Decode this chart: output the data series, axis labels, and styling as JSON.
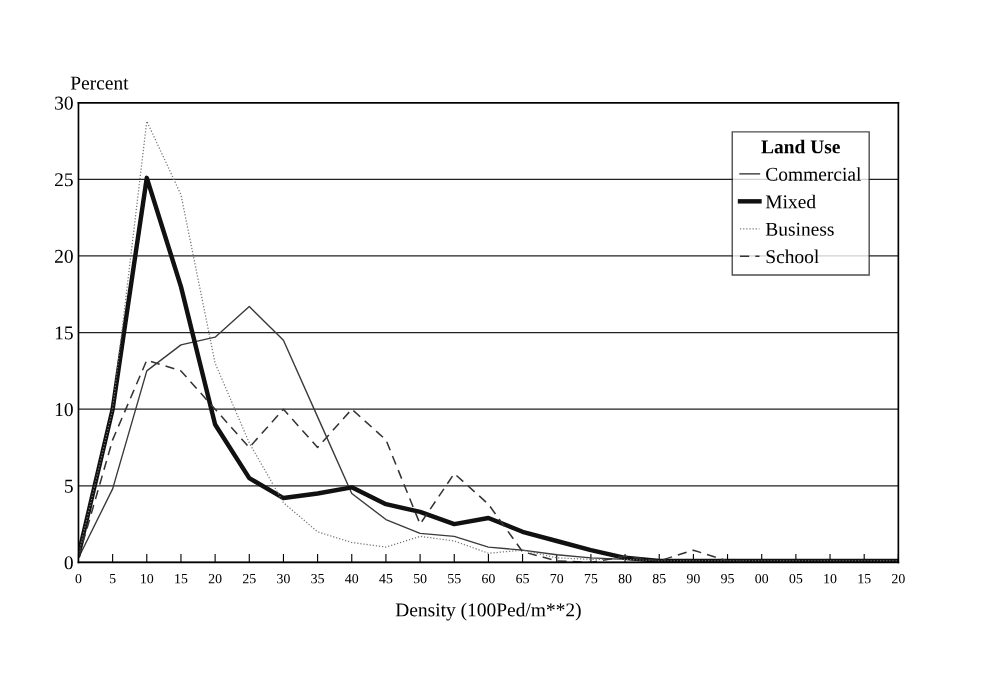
{
  "chart_data": {
    "type": "line",
    "ylabel": "Percent",
    "xlabel": "Density (100Ped/m**2)",
    "legend_title": "Land Use",
    "categories": [
      "0",
      "5",
      "10",
      "15",
      "20",
      "25",
      "30",
      "35",
      "40",
      "45",
      "50",
      "55",
      "60",
      "65",
      "70",
      "75",
      "80",
      "85",
      "90",
      "95",
      "00",
      "05",
      "10",
      "15",
      "20"
    ],
    "series": [
      {
        "name": "Commercial",
        "color": "#3a3a3a",
        "line_style": "solid",
        "values": [
          0.3,
          4.8,
          12.5,
          14.2,
          14.7,
          16.7,
          14.5,
          9.5,
          4.5,
          2.8,
          1.9,
          1.7,
          1.0,
          0.8,
          0.5,
          0.3,
          0.2,
          0.1,
          0.1,
          0.1,
          0.1,
          0.1,
          0.1,
          0.1,
          0.1
        ]
      },
      {
        "name": "Mixed",
        "color": "#111111",
        "line_style": "solid",
        "values": [
          0.5,
          10,
          25.1,
          18,
          9,
          5.5,
          4.2,
          4.5,
          4.9,
          3.8,
          3.3,
          2.5,
          2.9,
          2.0,
          1.4,
          0.8,
          0.3,
          0.1,
          0.1,
          0.1,
          0.1,
          0.1,
          0.1,
          0.1,
          0.1
        ]
      },
      {
        "name": "Business",
        "color": "#777777",
        "line_style": "dotted",
        "values": [
          0.5,
          10,
          28.8,
          24,
          13,
          7.8,
          3.9,
          2.0,
          1.3,
          1.0,
          1.7,
          1.4,
          0.6,
          0.8,
          0.3,
          0.2,
          0.2,
          0.1,
          0.1,
          0.1,
          0.1,
          0.1,
          0.1,
          0.1,
          0.1
        ]
      },
      {
        "name": "School",
        "color": "#333333",
        "line_style": "dashed",
        "values": [
          0.3,
          8,
          13.2,
          12.5,
          10,
          7.5,
          10,
          7.5,
          10,
          8,
          2.5,
          5.8,
          3.8,
          0.7,
          0.1,
          0.0,
          0.4,
          0.1,
          0.8,
          0.1,
          0.0,
          0.0,
          0.0,
          0.0,
          0.0
        ]
      }
    ],
    "ylim": [
      0,
      30
    ],
    "yticks": [
      0,
      5,
      10,
      15,
      20,
      25,
      30
    ],
    "grid": "y",
    "legend": "top right",
    "marker": "none"
  }
}
